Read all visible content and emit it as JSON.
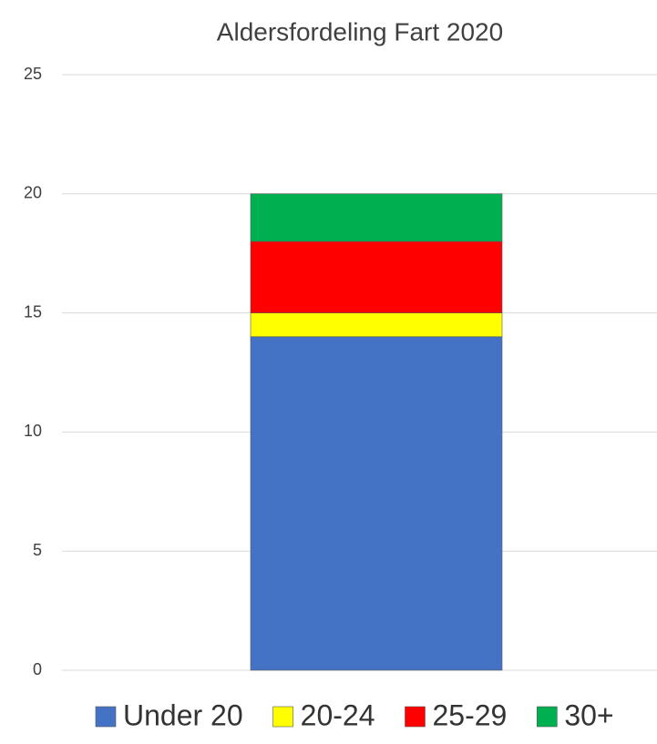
{
  "chart_data": {
    "type": "stacked_bar",
    "title": "Aldersfordeling Fart 2020",
    "categories": [
      null
    ],
    "series": [
      {
        "name": "Under 20",
        "color": "#4472c4",
        "values": [
          14
        ]
      },
      {
        "name": "20-24",
        "color": "#ffff00",
        "values": [
          1
        ]
      },
      {
        "name": "25-29",
        "color": "#ff0000",
        "values": [
          3
        ]
      },
      {
        "name": "30+",
        "color": "#00b050",
        "values": [
          2
        ]
      }
    ],
    "ylim": [
      0,
      25
    ],
    "yticks": [
      0,
      5,
      10,
      15,
      20,
      25
    ],
    "grid": true,
    "legend": "bottom"
  }
}
